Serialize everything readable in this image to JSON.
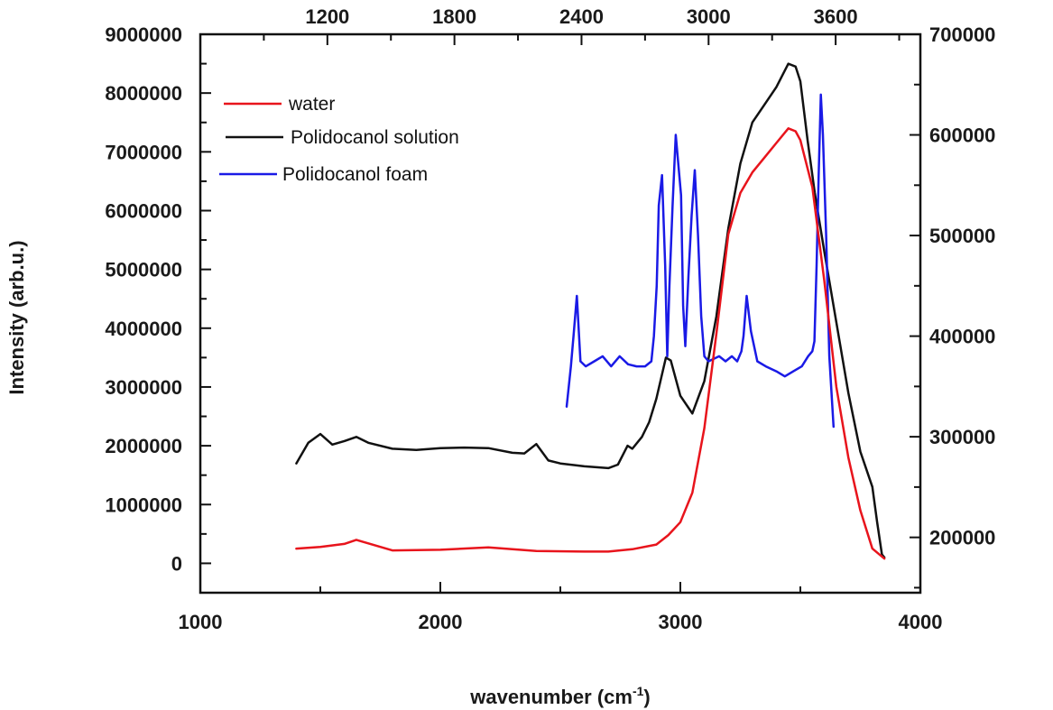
{
  "chart_data": {
    "type": "line",
    "title": "",
    "xlabel": "wavenumber (cm",
    "xlabel_sup": "-1",
    "xlabel_end": ")",
    "ylabel": "Intensity (arb.u.)",
    "xlim": [
      1000,
      4000
    ],
    "ylim": [
      -500000,
      9000000
    ],
    "x_ticks": [
      "1000",
      "2000",
      "3000",
      "4000"
    ],
    "y_ticks": [
      "0",
      "1000000",
      "2000000",
      "3000000",
      "4000000",
      "5000000",
      "6000000",
      "7000000",
      "8000000",
      "9000000"
    ],
    "top_axis": {
      "xlim": [
        600,
        4000
      ],
      "ticks": [
        "1200",
        "1800",
        "2400",
        "3000",
        "3600"
      ]
    },
    "right_axis": {
      "ylim": [
        145000,
        700000
      ],
      "ticks": [
        "200000",
        "300000",
        "400000",
        "500000",
        "600000",
        "700000"
      ]
    },
    "legend_position": "top-left",
    "series": [
      {
        "name": "water",
        "color": "#e8141c",
        "axes": "bottom-left",
        "x": [
          1400,
          1500,
          1600,
          1650,
          1700,
          1800,
          2000,
          2200,
          2400,
          2600,
          2700,
          2800,
          2900,
          2950,
          3000,
          3050,
          3100,
          3150,
          3200,
          3250,
          3300,
          3350,
          3400,
          3450,
          3480,
          3500,
          3550,
          3600,
          3650,
          3700,
          3750,
          3800,
          3850
        ],
        "y": [
          250000,
          280000,
          330000,
          400000,
          340000,
          220000,
          230000,
          270000,
          210000,
          200000,
          200000,
          240000,
          320000,
          480000,
          700000,
          1200000,
          2300000,
          3900000,
          5600000,
          6300000,
          6650000,
          6900000,
          7150000,
          7400000,
          7350000,
          7200000,
          6400000,
          4800000,
          3000000,
          1800000,
          900000,
          250000,
          80000
        ]
      },
      {
        "name": "Polidocanol solution",
        "color": "#111111",
        "axes": "bottom-left",
        "x": [
          1400,
          1450,
          1500,
          1550,
          1600,
          1650,
          1700,
          1800,
          1900,
          2000,
          2100,
          2200,
          2300,
          2350,
          2400,
          2450,
          2500,
          2600,
          2700,
          2740,
          2780,
          2800,
          2840,
          2870,
          2900,
          2940,
          2960,
          3000,
          3050,
          3100,
          3150,
          3200,
          3250,
          3300,
          3350,
          3400,
          3450,
          3480,
          3500,
          3530,
          3560,
          3600,
          3650,
          3700,
          3750,
          3800,
          3820,
          3840,
          3850
        ],
        "y": [
          1700000,
          2050000,
          2200000,
          2020000,
          2080000,
          2150000,
          2050000,
          1950000,
          1930000,
          1960000,
          1970000,
          1960000,
          1880000,
          1870000,
          2030000,
          1750000,
          1700000,
          1650000,
          1620000,
          1680000,
          2000000,
          1950000,
          2150000,
          2400000,
          2800000,
          3500000,
          3450000,
          2850000,
          2550000,
          3100000,
          4200000,
          5700000,
          6800000,
          7500000,
          7800000,
          8100000,
          8500000,
          8450000,
          8200000,
          7200000,
          6300000,
          5300000,
          4100000,
          2900000,
          1900000,
          1300000,
          700000,
          150000,
          100000
        ]
      },
      {
        "name": "Polidocanol foam",
        "color": "#1a1ae6",
        "axes": "top-right",
        "x": [
          2330,
          2350,
          2362,
          2378,
          2395,
          2420,
          2460,
          2500,
          2540,
          2580,
          2620,
          2660,
          2700,
          2730,
          2742,
          2755,
          2765,
          2780,
          2795,
          2805,
          2815,
          2830,
          2845,
          2870,
          2880,
          2890,
          2905,
          2920,
          2935,
          2950,
          2965,
          2980,
          3000,
          3050,
          3080,
          3110,
          3135,
          3155,
          3165,
          3180,
          3200,
          3230,
          3270,
          3320,
          3360,
          3400,
          3440,
          3470,
          3490,
          3500,
          3510,
          3520,
          3530,
          3540,
          3555,
          3570,
          3590
        ],
        "y": [
          330000,
          370000,
          400000,
          440000,
          375000,
          370000,
          375000,
          380000,
          370000,
          380000,
          372000,
          370000,
          370000,
          375000,
          400000,
          450000,
          530000,
          560000,
          470000,
          380000,
          450000,
          530000,
          600000,
          540000,
          430000,
          390000,
          460000,
          520000,
          565000,
          500000,
          420000,
          380000,
          375000,
          380000,
          375000,
          380000,
          375000,
          385000,
          400000,
          440000,
          405000,
          375000,
          370000,
          365000,
          360000,
          365000,
          370000,
          380000,
          385000,
          395000,
          470000,
          560000,
          640000,
          600000,
          500000,
          380000,
          310000
        ]
      }
    ]
  }
}
